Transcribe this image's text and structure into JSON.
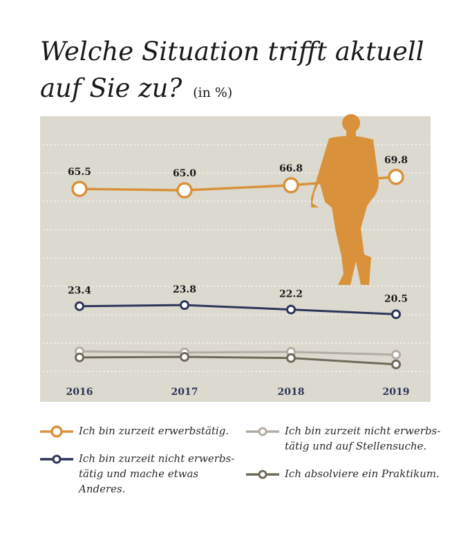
{
  "title": {
    "line1": "Welche Situation trifft aktuell",
    "line2": "auf Sie zu?",
    "unit": "(in %)"
  },
  "colors": {
    "background": "#dcd9cf",
    "gridline": "#ffffff",
    "orange": "#d9923b",
    "navy": "#2c3559",
    "lightgray": "#b2ada4",
    "darkgray": "#6e6a5a",
    "year_label": "#2c3559"
  },
  "decoration": {
    "icon": "standing-man-silhouette-icon"
  },
  "chart_data": {
    "type": "line",
    "x": [
      "2016",
      "2017",
      "2018",
      "2019"
    ],
    "ylim": [
      0,
      100
    ],
    "grid": true,
    "legend_position": "bottom",
    "series": [
      {
        "name": "Ich bin zurzeit erwerbstätig.",
        "color": "#d9923b",
        "values": [
          65.5,
          65.0,
          66.8,
          69.8
        ],
        "labels": [
          "65.5",
          "65.0",
          "66.8",
          "69.8"
        ],
        "marker": "large-ring"
      },
      {
        "name": "Ich bin zurzeit nicht erwerbstätig und mache etwas Anderes.",
        "color": "#2c3559",
        "values": [
          23.4,
          23.8,
          22.2,
          20.5
        ],
        "labels": [
          "23.4",
          "23.8",
          "22.2",
          "20.5"
        ],
        "marker": "small-ring"
      },
      {
        "name": "Ich bin zurzeit nicht erwerbstätig und auf Stellensuche.",
        "color": "#b2ada4",
        "values": [
          7.2,
          6.8,
          7.0,
          6.0
        ],
        "labels": [],
        "marker": "small-ring"
      },
      {
        "name": "Ich absolviere ein Praktikum.",
        "color": "#6e6a5a",
        "values": [
          5.0,
          5.2,
          4.8,
          2.5
        ],
        "labels": [],
        "marker": "small-ring"
      }
    ]
  },
  "legend": [
    {
      "line1": "Ich bin zurzeit erwerbstätig.",
      "line2": ""
    },
    {
      "line1": "Ich bin zurzeit nicht erwerbs-",
      "line2": "tätig und mache etwas Anderes."
    },
    {
      "line1": "Ich bin zurzeit nicht erwerbs-",
      "line2": "tätig und auf Stellensuche."
    },
    {
      "line1": "Ich absolviere ein Praktikum.",
      "line2": ""
    }
  ]
}
